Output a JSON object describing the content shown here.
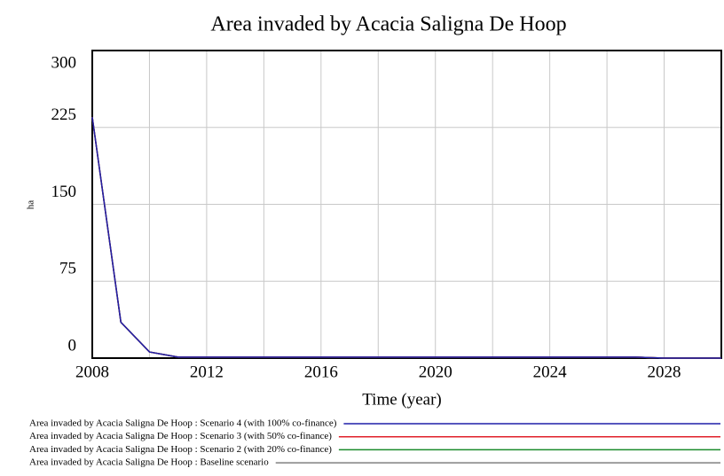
{
  "chart_data": {
    "type": "line",
    "title": "Area invaded by Acacia Saligna De Hoop",
    "x_label": "Time (year)",
    "y_label": "ha",
    "x": [
      2008,
      2009,
      2010,
      2011,
      2012,
      2013,
      2014,
      2015,
      2016,
      2017,
      2018,
      2019,
      2020,
      2021,
      2022,
      2023,
      2024,
      2025,
      2026,
      2027,
      2028,
      2029,
      2030
    ],
    "series": [
      {
        "name": "Area invaded by Acacia Saligna De Hoop : Scenario 4 (with 100% co-finance)",
        "color": "#1f1fa8",
        "values": [
          235,
          35,
          6,
          1,
          1,
          1,
          1,
          1,
          1,
          1,
          1,
          1,
          1,
          1,
          1,
          1,
          1,
          1,
          1,
          1,
          0,
          0,
          0
        ]
      },
      {
        "name": "Area invaded by Acacia Saligna De Hoop : Scenario 3 (with 50% co-finance)",
        "color": "#e0202a",
        "values": [
          235,
          35,
          6,
          1,
          1,
          1,
          1,
          1,
          1,
          1,
          1,
          1,
          1,
          1,
          1,
          1,
          1,
          1,
          1,
          1,
          0,
          0,
          0
        ]
      },
      {
        "name": "Area invaded by Acacia Saligna De Hoop : Scenario 2 (with 20% co-finance)",
        "color": "#1a8a2a",
        "values": [
          235,
          35,
          6,
          1,
          1,
          1,
          1,
          1,
          1,
          1,
          1,
          1,
          1,
          1,
          1,
          1,
          1,
          1,
          1,
          1,
          0,
          0,
          0
        ]
      },
      {
        "name": "Area invaded by Acacia Saligna De Hoop : Baseline scenario",
        "color": "#808080",
        "values": [
          235,
          35,
          6,
          1,
          1,
          1,
          1,
          1,
          1,
          1,
          1,
          1,
          1,
          1,
          1,
          1,
          1,
          1,
          1,
          1,
          0,
          0,
          0
        ]
      }
    ],
    "xlim": [
      2008,
      2030
    ],
    "xticks": [
      2008,
      2012,
      2016,
      2020,
      2024,
      2028
    ],
    "xgrid": [
      2010,
      2012,
      2014,
      2016,
      2018,
      2020,
      2022,
      2024,
      2026,
      2028
    ],
    "ylim": [
      0,
      300
    ],
    "yticks": [
      0,
      75,
      150,
      225,
      300
    ],
    "grid": true
  }
}
